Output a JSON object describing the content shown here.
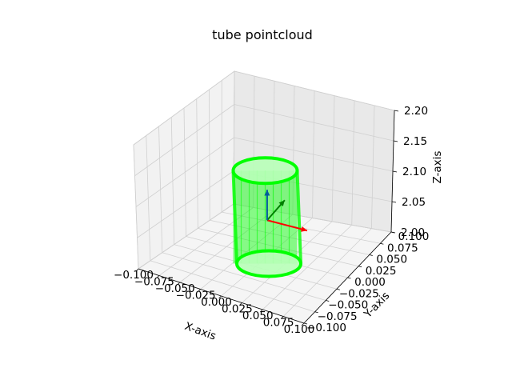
{
  "chart_data": {
    "type": "scatter3d",
    "title": "tube pointcloud",
    "xlabel": "X-axis",
    "ylabel": "Y-axis",
    "zlabel": "Z-axis",
    "xlim": [
      -0.1,
      0.1
    ],
    "ylim": [
      -0.1,
      0.1
    ],
    "zlim": [
      2.0,
      2.2
    ],
    "x_ticks": [
      "−0.100",
      "−0.075",
      "−0.050",
      "−0.025",
      "0.000",
      "0.025",
      "0.050",
      "0.075",
      "0.100"
    ],
    "y_ticks": [
      "−0.100",
      "−0.075",
      "−0.050",
      "−0.025",
      "0.000",
      "0.025",
      "0.050",
      "0.075",
      "0.100"
    ],
    "z_ticks": [
      "2.00",
      "2.05",
      "2.10",
      "2.15",
      "2.20"
    ],
    "grid": true,
    "series": [
      {
        "shape": "tube",
        "color": "#00ff00",
        "center": [
          0.0,
          0.0
        ],
        "radius": 0.03,
        "z_range": [
          2.0,
          2.15
        ]
      }
    ],
    "frame_axes": [
      {
        "axis": "x",
        "color": "#ff0000"
      },
      {
        "axis": "y",
        "color": "#008000"
      },
      {
        "axis": "z",
        "color": "#005a9c"
      }
    ]
  }
}
